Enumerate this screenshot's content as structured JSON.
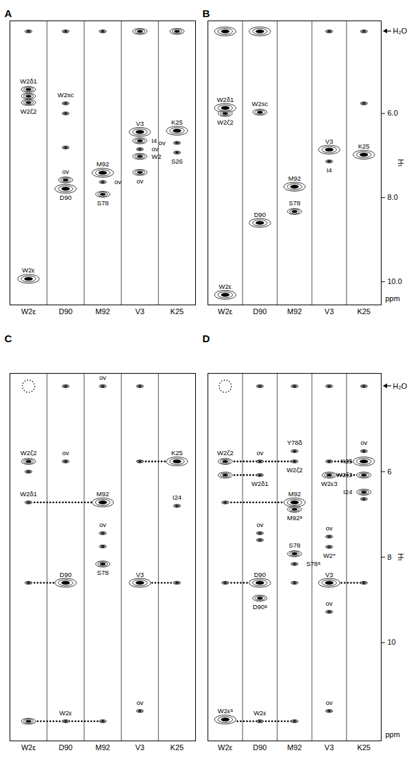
{
  "chart_data": [
    {
      "type": "strip",
      "title": "A",
      "strips": [
        "W2ε",
        "D90",
        "M92",
        "V3",
        "K25"
      ],
      "ylim": [
        3.8,
        10.55
      ],
      "tick_labels": "x",
      "peaks": [
        {
          "strip": "W2ε",
          "y": 4.05,
          "size": 1
        },
        {
          "strip": "W2ε",
          "y": 5.43,
          "size": 2,
          "label": "W2δ1"
        },
        {
          "strip": "W2ε",
          "y": 5.59,
          "size": 2
        },
        {
          "strip": "W2ε",
          "y": 5.74,
          "size": 2,
          "label": "W2ζ2"
        },
        {
          "strip": "W2ε",
          "y": 9.93,
          "size": 3,
          "label": "W2ε"
        },
        {
          "strip": "D90",
          "y": 4.05,
          "size": 1
        },
        {
          "strip": "D90",
          "y": 5.76,
          "size": 1,
          "label": "W2sc"
        },
        {
          "strip": "D90",
          "y": 6.0,
          "size": 1
        },
        {
          "strip": "D90",
          "y": 6.81,
          "size": 1
        },
        {
          "strip": "D90",
          "y": 7.58,
          "size": 2,
          "label": "ov"
        },
        {
          "strip": "D90",
          "y": 7.79,
          "size": 3,
          "label": "D90"
        },
        {
          "strip": "M92",
          "y": 4.05,
          "size": 1
        },
        {
          "strip": "M92",
          "y": 7.41,
          "size": 3,
          "label": "M92"
        },
        {
          "strip": "M92",
          "y": 7.63,
          "size": 1,
          "label": "ov"
        },
        {
          "strip": "M92",
          "y": 7.92,
          "size": 2,
          "label": "S78"
        },
        {
          "strip": "V3",
          "y": 4.05,
          "size": 2
        },
        {
          "strip": "V3",
          "y": 6.44,
          "size": 3,
          "label": "V3"
        },
        {
          "strip": "V3",
          "y": 6.65,
          "size": 2,
          "label": "I4"
        },
        {
          "strip": "V3",
          "y": 6.85,
          "size": 1,
          "label": "ov"
        },
        {
          "strip": "V3",
          "y": 7.02,
          "size": 2,
          "label": "W2"
        },
        {
          "strip": "V3",
          "y": 7.4,
          "size": 2,
          "label": "ov"
        },
        {
          "strip": "K25",
          "y": 4.05,
          "size": 2
        },
        {
          "strip": "K25",
          "y": 6.41,
          "size": 3,
          "label": "K25"
        },
        {
          "strip": "K25",
          "y": 6.7,
          "size": 1,
          "label": "ov"
        },
        {
          "strip": "K25",
          "y": 6.93,
          "size": 1,
          "label": "S26"
        }
      ]
    },
    {
      "type": "strip",
      "title": "B",
      "strips": [
        "W2ε",
        "D90",
        "M92",
        "V3",
        "K25"
      ],
      "ylim": [
        3.8,
        10.55
      ],
      "yticks": [
        6,
        8,
        10
      ],
      "y_label": "¹H",
      "y_unit": "ppm",
      "water": {
        "label": "H₂O",
        "y": 4.05
      },
      "peaks": [
        {
          "strip": "W2ε",
          "y": 4.05,
          "size": 3
        },
        {
          "strip": "W2ε",
          "y": 5.87,
          "size": 3,
          "label": "W2δ1"
        },
        {
          "strip": "W2ε",
          "y": 6.0,
          "size": 2,
          "label": "W2ζ2"
        },
        {
          "strip": "W2ε",
          "y": 10.31,
          "size": 3,
          "label": "W2ε"
        },
        {
          "strip": "D90",
          "y": 4.05,
          "size": 3
        },
        {
          "strip": "D90",
          "y": 5.97,
          "size": 2,
          "label": "W2sc"
        },
        {
          "strip": "D90",
          "y": 8.6,
          "size": 3,
          "label": "D90"
        },
        {
          "strip": "M92",
          "y": 7.74,
          "size": 3,
          "label": "M92"
        },
        {
          "strip": "M92",
          "y": 8.33,
          "size": 2,
          "label": "S78"
        },
        {
          "strip": "V3",
          "y": 4.05,
          "size": 1
        },
        {
          "strip": "V3",
          "y": 6.86,
          "size": 3,
          "label": "V3"
        },
        {
          "strip": "V3",
          "y": 7.14,
          "size": 1,
          "label": "I4"
        },
        {
          "strip": "K25",
          "y": 4.05,
          "size": 1
        },
        {
          "strip": "K25",
          "y": 5.76,
          "size": 1
        },
        {
          "strip": "K25",
          "y": 6.98,
          "size": 3,
          "label": "K25"
        }
      ]
    },
    {
      "type": "strip",
      "title": "C",
      "strips": [
        "W2ε",
        "D90",
        "M92",
        "V3",
        "K25"
      ],
      "ylim": [
        3.7,
        12.3
      ],
      "tick_labels": "x",
      "dotted_circles": [
        {
          "strip": "W2ε",
          "y": 4.0
        }
      ],
      "connections": [
        {
          "y": 5.76,
          "from": "V3",
          "to": "K25"
        },
        {
          "y": 6.72,
          "from": "W2ε",
          "to": "M92"
        },
        {
          "y": 8.6,
          "from": "W2ε",
          "to": "D90"
        },
        {
          "y": 8.6,
          "from": "V3",
          "to": "K25"
        },
        {
          "y": 11.84,
          "from": "W2ε",
          "to": "M92"
        }
      ],
      "peaks": [
        {
          "strip": "W2ε",
          "y": 5.76,
          "size": 2,
          "label": "W2ζ2"
        },
        {
          "strip": "W2ε",
          "y": 6.0,
          "size": 1
        },
        {
          "strip": "W2ε",
          "y": 6.72,
          "size": 1,
          "label": "W2δ1"
        },
        {
          "strip": "W2ε",
          "y": 8.6,
          "size": 1
        },
        {
          "strip": "W2ε",
          "y": 11.84,
          "size": 2
        },
        {
          "strip": "D90",
          "y": 4.0,
          "size": 1
        },
        {
          "strip": "D90",
          "y": 5.76,
          "size": 1,
          "label": "ov"
        },
        {
          "strip": "D90",
          "y": 8.6,
          "size": 3,
          "label": "D90"
        },
        {
          "strip": "D90",
          "y": 11.84,
          "size": 1,
          "label": "W2ε"
        },
        {
          "strip": "M92",
          "y": 4.0,
          "size": 1,
          "label": "ov"
        },
        {
          "strip": "M92",
          "y": 6.72,
          "size": 3,
          "label": "M92"
        },
        {
          "strip": "M92",
          "y": 7.44,
          "size": 1,
          "label": "ov"
        },
        {
          "strip": "M92",
          "y": 7.75,
          "size": 1
        },
        {
          "strip": "M92",
          "y": 8.16,
          "size": 2,
          "label": "S78"
        },
        {
          "strip": "M92",
          "y": 11.84,
          "size": 1
        },
        {
          "strip": "V3",
          "y": 4.0,
          "size": 1
        },
        {
          "strip": "V3",
          "y": 5.76,
          "size": 1
        },
        {
          "strip": "V3",
          "y": 8.6,
          "size": 3,
          "label": "V3"
        },
        {
          "strip": "V3",
          "y": 11.6,
          "size": 1,
          "label": "ov"
        },
        {
          "strip": "K25",
          "y": 5.76,
          "size": 3,
          "label": "K25"
        },
        {
          "strip": "K25",
          "y": 6.8,
          "size": 1,
          "label": "I24"
        },
        {
          "strip": "K25",
          "y": 8.6,
          "size": 1
        }
      ]
    },
    {
      "type": "strip",
      "title": "D",
      "strips": [
        "W2ε",
        "D90",
        "M92",
        "V3",
        "K25"
      ],
      "ylim": [
        3.7,
        12.3
      ],
      "yticks": [
        6,
        8,
        10
      ],
      "y_label": "¹H",
      "y_unit": "ppm",
      "water": {
        "label": "H₂O",
        "y": 4.0
      },
      "dotted_circles": [
        {
          "strip": "W2ε",
          "y": 4.0
        }
      ],
      "connections": [
        {
          "y": 5.76,
          "from": "W2ε",
          "to": "M92"
        },
        {
          "y": 6.08,
          "from": "W2ε",
          "to": "D90"
        },
        {
          "y": 6.72,
          "from": "W2ε",
          "to": "M92"
        },
        {
          "y": 8.6,
          "from": "W2ε",
          "to": "D90"
        },
        {
          "y": 11.84,
          "from": "W2ε",
          "to": "M92"
        },
        {
          "y": 5.76,
          "from": "V3",
          "to": "K25"
        },
        {
          "y": 6.08,
          "from": "V3",
          "to": "K25"
        },
        {
          "y": 8.6,
          "from": "V3",
          "to": "K25"
        }
      ],
      "peaks": [
        {
          "strip": "W2ε",
          "y": 5.76,
          "size": 2,
          "label": "W2ζ2"
        },
        {
          "strip": "W2ε",
          "y": 6.08,
          "size": 2
        },
        {
          "strip": "W2ε",
          "y": 6.72,
          "size": 1
        },
        {
          "strip": "W2ε",
          "y": 8.6,
          "size": 1
        },
        {
          "strip": "W2ε",
          "y": 11.8,
          "size": 3,
          "label": "W2εᵃ"
        },
        {
          "strip": "D90",
          "y": 4.0,
          "size": 1
        },
        {
          "strip": "D90",
          "y": 5.76,
          "size": 1,
          "label": "ov"
        },
        {
          "strip": "D90",
          "y": 6.08,
          "size": 1,
          "label": "W2δ1"
        },
        {
          "strip": "D90",
          "y": 7.44,
          "size": 1,
          "label": "ov"
        },
        {
          "strip": "D90",
          "y": 7.6,
          "size": 1
        },
        {
          "strip": "D90",
          "y": 8.6,
          "size": 3,
          "label": "D90"
        },
        {
          "strip": "D90",
          "y": 8.96,
          "size": 2,
          "label": "D90ᵃ"
        },
        {
          "strip": "D90",
          "y": 11.84,
          "size": 1,
          "label": "W2ε"
        },
        {
          "strip": "M92",
          "y": 4.0,
          "size": 1
        },
        {
          "strip": "M92",
          "y": 5.52,
          "size": 1,
          "label": "Y78δ"
        },
        {
          "strip": "M92",
          "y": 5.76,
          "size": 1,
          "label": "W2ζ2"
        },
        {
          "strip": "M92",
          "y": 6.72,
          "size": 3,
          "label": "M92"
        },
        {
          "strip": "M92",
          "y": 6.88,
          "size": 2,
          "label": "M92ᵃ"
        },
        {
          "strip": "M92",
          "y": 7.92,
          "size": 2,
          "label": "S78"
        },
        {
          "strip": "M92",
          "y": 8.16,
          "size": 1,
          "label": "S78ᵃ"
        },
        {
          "strip": "M92",
          "y": 8.6,
          "size": 1
        },
        {
          "strip": "M92",
          "y": 11.84,
          "size": 1
        },
        {
          "strip": "V3",
          "y": 4.0,
          "size": 1
        },
        {
          "strip": "V3",
          "y": 5.76,
          "size": 1
        },
        {
          "strip": "V3",
          "y": 6.08,
          "size": 2,
          "label": "W2ε3"
        },
        {
          "strip": "V3",
          "y": 7.52,
          "size": 1,
          "label": "ov"
        },
        {
          "strip": "V3",
          "y": 7.76,
          "size": 1,
          "label": "W2*"
        },
        {
          "strip": "V3",
          "y": 8.6,
          "size": 3,
          "label": "V3"
        },
        {
          "strip": "V3",
          "y": 9.28,
          "size": 1,
          "label": "ov"
        },
        {
          "strip": "V3",
          "y": 11.6,
          "size": 1,
          "label": "ov"
        },
        {
          "strip": "K25",
          "y": 4.0,
          "size": 1
        },
        {
          "strip": "K25",
          "y": 5.52,
          "size": 1,
          "label": "ov"
        },
        {
          "strip": "K25",
          "y": 5.76,
          "size": 3,
          "label": "K25"
        },
        {
          "strip": "K25",
          "y": 6.08,
          "size": 2,
          "label": "W2ζ3"
        },
        {
          "strip": "K25",
          "y": 6.48,
          "size": 2,
          "label": "I24"
        },
        {
          "strip": "K25",
          "y": 6.64,
          "size": 1
        },
        {
          "strip": "K25",
          "y": 8.6,
          "size": 1
        }
      ]
    }
  ]
}
